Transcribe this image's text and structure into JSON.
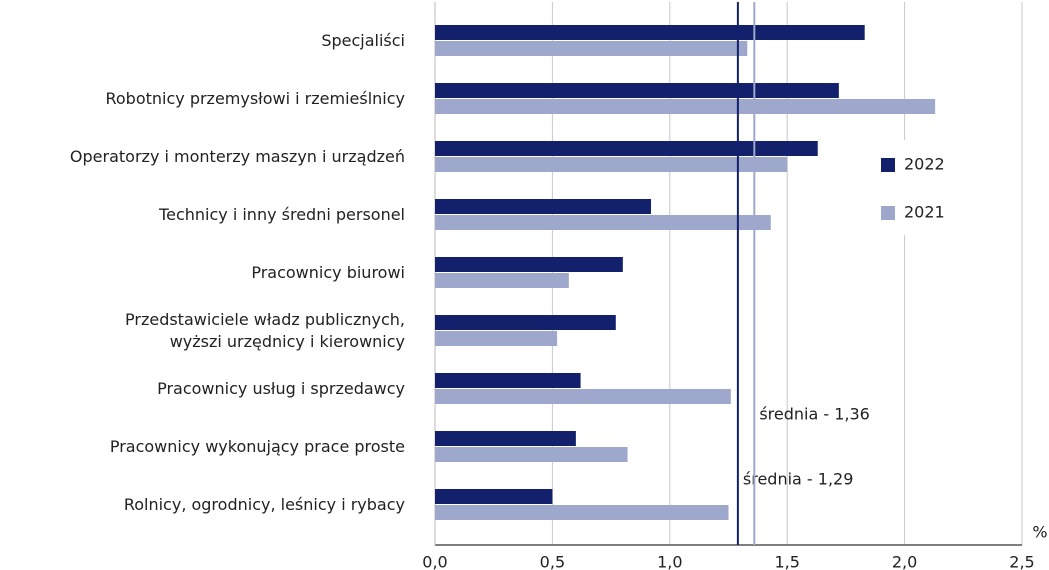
{
  "chart_data": {
    "type": "bar",
    "orientation": "horizontal",
    "categories": [
      "Specjaliści",
      "Robotnicy przemysłowi i rzemieślnicy",
      "Operatorzy i monterzy maszyn i urządzeń",
      "Technicy i inny średni personel",
      "Pracownicy biurowi",
      "Przedstawiciele władz publicznych,\nwyższi urzędnicy i kierownicy",
      "Pracownicy usług i sprzedawcy",
      "Pracownicy wykonujący prace proste",
      "Rolnicy, ogrodnicy, leśnicy i rybacy"
    ],
    "series": [
      {
        "name": "2022",
        "color": "#13216c",
        "values": [
          1.83,
          1.72,
          1.63,
          0.92,
          0.8,
          0.77,
          0.62,
          0.6,
          0.5
        ]
      },
      {
        "name": "2021",
        "color": "#9ea8cc",
        "values": [
          1.33,
          2.13,
          1.5,
          1.43,
          0.57,
          0.52,
          1.26,
          0.82,
          1.25
        ]
      }
    ],
    "averages": [
      {
        "value": 1.29,
        "label": "średnia - 1,29",
        "color": "#13216c"
      },
      {
        "value": 1.36,
        "label": "średnia - 1,36",
        "color": "#9ea8cc"
      }
    ],
    "xlabel": "%",
    "xlim": [
      0,
      2.5
    ],
    "xticks": [
      {
        "value": 0,
        "label": "0,0"
      },
      {
        "value": 0.5,
        "label": "0,5"
      },
      {
        "value": 1,
        "label": "1,0"
      },
      {
        "value": 1.5,
        "label": "1,5"
      },
      {
        "value": 2,
        "label": "2,0"
      },
      {
        "value": 2.5,
        "label": "2,5"
      }
    ],
    "grid": true,
    "legend": "right"
  }
}
